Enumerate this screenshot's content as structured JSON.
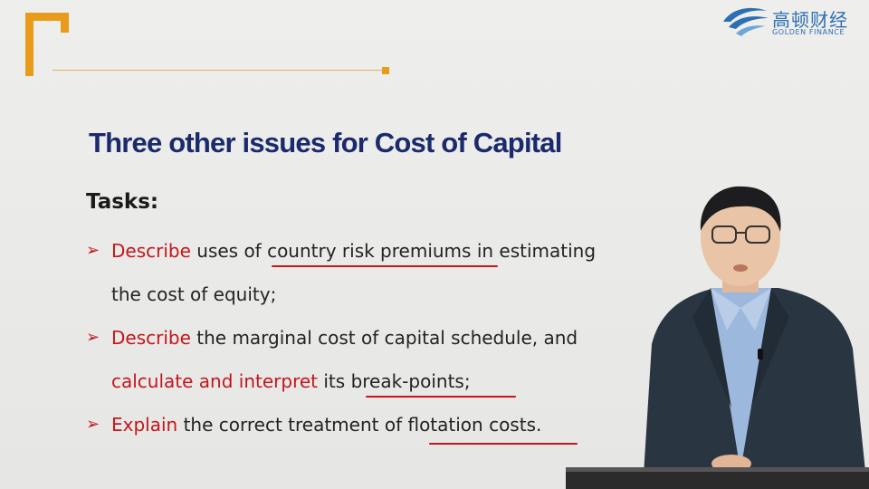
{
  "logo": {
    "name_cn": "高顿财经",
    "name_en": "GOLDEN FINANCE"
  },
  "slide": {
    "title": "Three other issues for Cost of Capital",
    "tasks_heading": "Tasks:",
    "bullets": [
      {
        "marker": "➢",
        "line1": {
          "red": "Describe",
          "mid": " uses of ",
          "underlined": "country risk premiums",
          "end": " in estimating"
        },
        "line2": "the cost of equity;"
      },
      {
        "marker": "➢",
        "line1": {
          "red": "Describe",
          "rest": " the marginal cost of capital schedule, and"
        },
        "line2": {
          "red": "calculate and interpret",
          "mid": " its ",
          "underlined": "break-points;"
        }
      },
      {
        "marker": "➢",
        "line1": {
          "red": "Explain",
          "mid": " the correct treatment of ",
          "underlined": "flotation costs."
        }
      }
    ]
  },
  "colors": {
    "accent_orange": "#e99b1c",
    "title_navy": "#1a2a6c",
    "highlight_red": "#c4161c",
    "logo_blue": "#2d6fb3"
  }
}
